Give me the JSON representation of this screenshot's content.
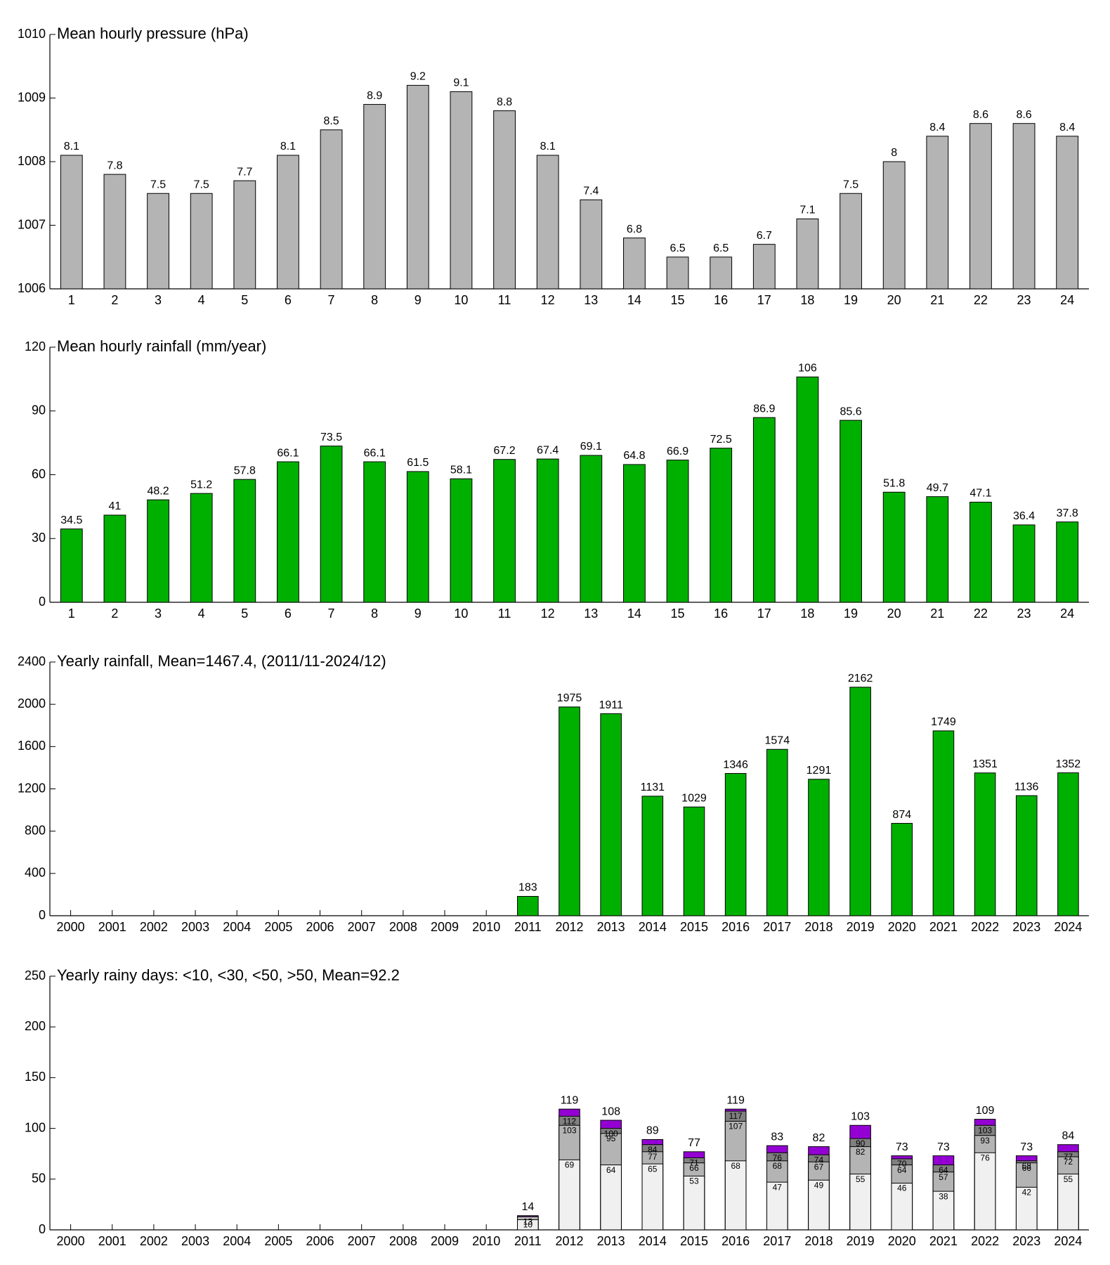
{
  "chart_data": [
    {
      "type": "bar",
      "title": "Mean hourly pressure (hPa)",
      "categories": [
        "1",
        "2",
        "3",
        "4",
        "5",
        "6",
        "7",
        "8",
        "9",
        "10",
        "11",
        "12",
        "13",
        "14",
        "15",
        "16",
        "17",
        "18",
        "19",
        "20",
        "21",
        "22",
        "23",
        "24"
      ],
      "values": [
        1008.1,
        1007.8,
        1007.5,
        1007.5,
        1007.7,
        1008.1,
        1008.5,
        1008.9,
        1009.2,
        1009.1,
        1008.8,
        1008.1,
        1007.4,
        1006.8,
        1006.5,
        1006.5,
        1006.7,
        1007.1,
        1007.5,
        1008.0,
        1008.4,
        1008.6,
        1008.6,
        1008.4
      ],
      "value_labels": [
        "8.1",
        "7.8",
        "7.5",
        "7.5",
        "7.7",
        "8.1",
        "8.5",
        "8.9",
        "9.2",
        "9.1",
        "8.8",
        "8.1",
        "7.4",
        "6.8",
        "6.5",
        "6.5",
        "6.7",
        "7.1",
        "7.5",
        "8",
        "8.4",
        "8.6",
        "8.6",
        "8.4"
      ],
      "color": "#b4b4b4",
      "ylim": [
        1006,
        1010
      ],
      "yticks": [
        1006,
        1007,
        1008,
        1009,
        1010
      ]
    },
    {
      "type": "bar",
      "title": "Mean hourly rainfall (mm/year)",
      "categories": [
        "1",
        "2",
        "3",
        "4",
        "5",
        "6",
        "7",
        "8",
        "9",
        "10",
        "11",
        "12",
        "13",
        "14",
        "15",
        "16",
        "17",
        "18",
        "19",
        "20",
        "21",
        "22",
        "23",
        "24"
      ],
      "values": [
        34.5,
        41,
        48.2,
        51.2,
        57.8,
        66.1,
        73.5,
        66.1,
        61.5,
        58.1,
        67.2,
        67.4,
        69.1,
        64.8,
        66.9,
        72.5,
        86.9,
        106,
        85.6,
        51.8,
        49.7,
        47.1,
        36.4,
        37.8
      ],
      "color": "#00b000",
      "ylim": [
        0,
        120
      ],
      "yticks": [
        0,
        30,
        60,
        90,
        120
      ]
    },
    {
      "type": "bar",
      "title": "Yearly rainfall, Mean=1467.4, (2011/11-2024/12)",
      "categories": [
        "2000",
        "2001",
        "2002",
        "2003",
        "2004",
        "2005",
        "2006",
        "2007",
        "2008",
        "2009",
        "2010",
        "2011",
        "2012",
        "2013",
        "2014",
        "2015",
        "2016",
        "2017",
        "2018",
        "2019",
        "2020",
        "2021",
        "2022",
        "2023",
        "2024"
      ],
      "values": [
        null,
        null,
        null,
        null,
        null,
        null,
        null,
        null,
        null,
        null,
        null,
        183,
        1975,
        1911,
        1131,
        1029,
        1346,
        1574,
        1291,
        2162,
        874,
        1749,
        1351,
        1136,
        1352
      ],
      "color": "#00b000",
      "ylim": [
        0,
        2400
      ],
      "yticks": [
        0,
        400,
        800,
        1200,
        1600,
        2000,
        2400
      ]
    },
    {
      "type": "bar",
      "title": "Yearly rainy days: <10, <30, <50, >50, Mean=92.2",
      "categories": [
        "2000",
        "2001",
        "2002",
        "2003",
        "2004",
        "2005",
        "2006",
        "2007",
        "2008",
        "2009",
        "2010",
        "2011",
        "2012",
        "2013",
        "2014",
        "2015",
        "2016",
        "2017",
        "2018",
        "2019",
        "2020",
        "2021",
        "2022",
        "2023",
        "2024"
      ],
      "series": [
        {
          "color": "#f0f0f0",
          "values": [
            null,
            null,
            null,
            null,
            null,
            null,
            null,
            null,
            null,
            null,
            null,
            10,
            69,
            64,
            65,
            53,
            68,
            47,
            49,
            55,
            46,
            38,
            76,
            42,
            55
          ]
        },
        {
          "color": "#b4b4b4",
          "values": [
            null,
            null,
            null,
            null,
            null,
            null,
            null,
            null,
            null,
            null,
            null,
            13,
            103,
            95,
            77,
            66,
            107,
            68,
            67,
            82,
            64,
            57,
            93,
            66,
            72
          ]
        },
        {
          "color": "#808080",
          "values": [
            null,
            null,
            null,
            null,
            null,
            null,
            null,
            null,
            null,
            null,
            null,
            13,
            112,
            100,
            84,
            71,
            117,
            76,
            74,
            90,
            70,
            64,
            103,
            68,
            77
          ]
        },
        {
          "color": "#9400d3",
          "values": [
            null,
            null,
            null,
            null,
            null,
            null,
            null,
            null,
            null,
            null,
            null,
            14,
            119,
            108,
            89,
            77,
            119,
            83,
            82,
            103,
            73,
            73,
            109,
            73,
            84
          ]
        }
      ],
      "ylim": [
        0,
        250
      ],
      "yticks": [
        0,
        50,
        100,
        150,
        200,
        250
      ]
    }
  ]
}
